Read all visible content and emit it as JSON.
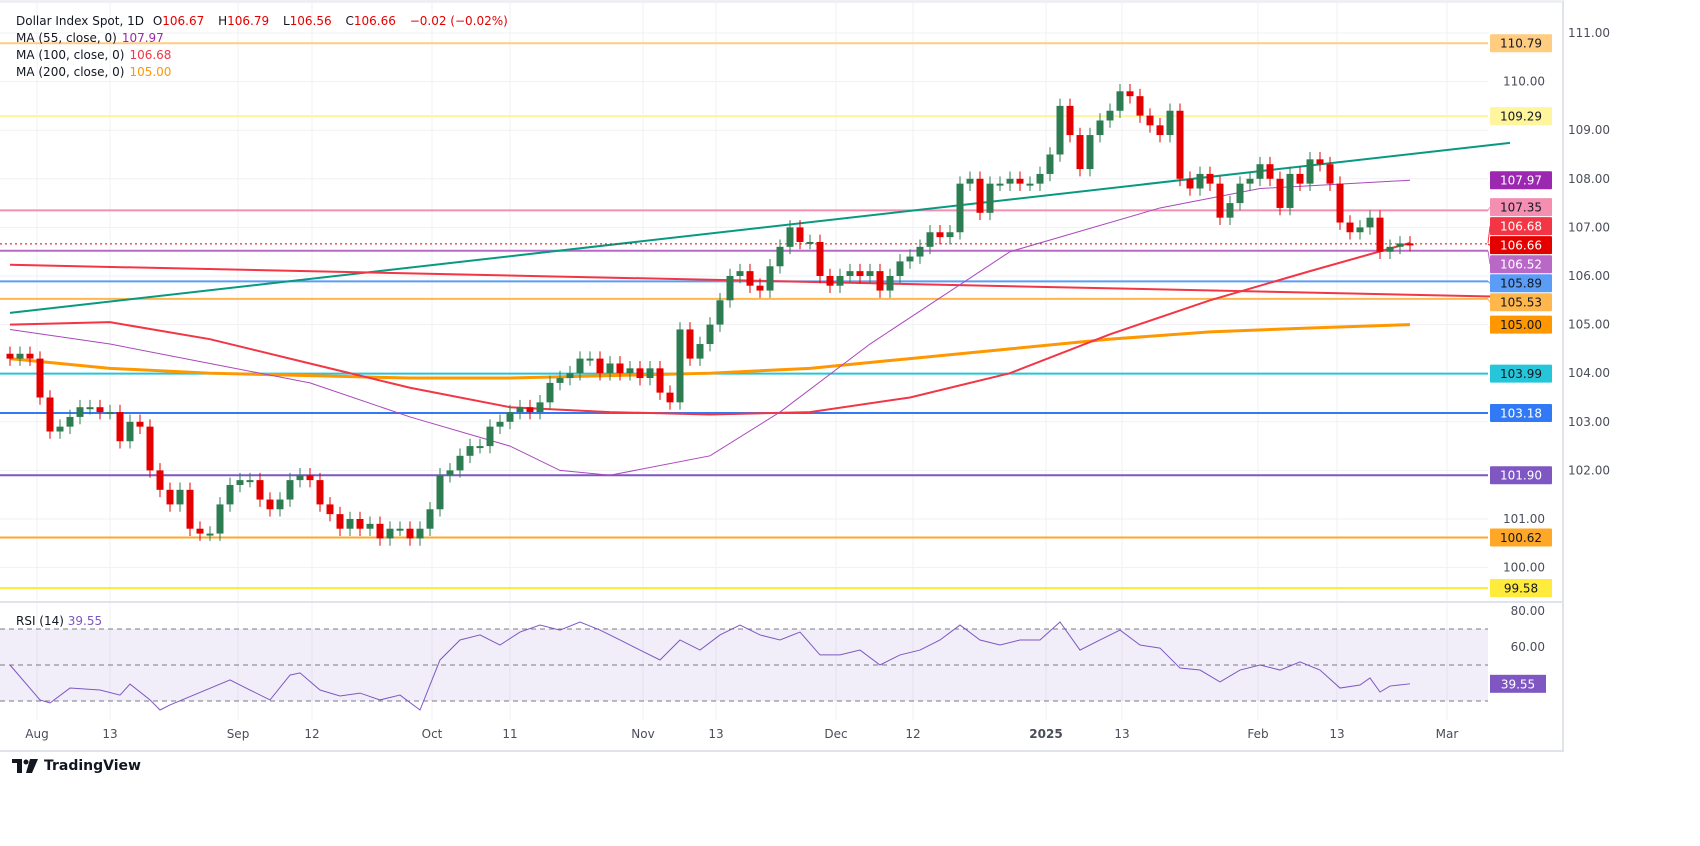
{
  "header": {
    "symbol": "Dollar Index Spot, 1D",
    "o_label": "O",
    "open": "106.67",
    "h_label": "H",
    "high": "106.79",
    "l_label": "L",
    "low": "106.56",
    "c_label": "C",
    "close": "106.66",
    "change": "−0.02 (−0.02%)"
  },
  "indicators": [
    {
      "label": "MA (55, close, 0)",
      "value": "107.97",
      "color": "#9c27b0"
    },
    {
      "label": "MA (100, close, 0)",
      "value": "106.68",
      "color": "#f23645"
    },
    {
      "label": "MA (200, close, 0)",
      "value": "105.00",
      "color": "#ff9800"
    }
  ],
  "rsi": {
    "label": "RSI (14)",
    "value": "39.55",
    "color": "#7e57c2"
  },
  "footer": {
    "brand": "TradingView"
  },
  "chart_data": {
    "type": "candlestick",
    "ylim": [
      99.3,
      111.2
    ],
    "price_ticks": [
      "100.00",
      "101.00",
      "102.00",
      "103.00",
      "104.00",
      "105.00",
      "106.00",
      "107.00",
      "108.00",
      "109.00",
      "110.00",
      "111.00"
    ],
    "x_ticks": [
      "Aug",
      "13",
      "Sep",
      "12",
      "Oct",
      "11",
      "Nov",
      "13",
      "Dec",
      "12",
      "2025",
      "13",
      "Feb",
      "13",
      "Mar"
    ],
    "up_color": "#2e7d52",
    "down_color": "#e50000",
    "closes": [
      104.3,
      104.4,
      104.3,
      103.5,
      102.8,
      102.9,
      103.1,
      103.3,
      103.3,
      103.2,
      103.2,
      102.6,
      103.0,
      102.9,
      102.0,
      101.6,
      101.3,
      101.6,
      100.8,
      100.7,
      100.7,
      101.3,
      101.7,
      101.8,
      101.8,
      101.4,
      101.2,
      101.4,
      101.8,
      101.9,
      101.8,
      101.3,
      101.1,
      100.8,
      101.0,
      100.8,
      100.9,
      100.6,
      100.8,
      100.8,
      100.6,
      100.8,
      101.2,
      101.9,
      102.0,
      102.3,
      102.5,
      102.5,
      102.9,
      103.0,
      103.2,
      103.3,
      103.2,
      103.4,
      103.8,
      103.9,
      104.0,
      104.3,
      104.3,
      104.0,
      104.2,
      104.0,
      104.1,
      103.9,
      104.1,
      103.6,
      103.4,
      104.9,
      104.3,
      104.6,
      105.0,
      105.5,
      106.0,
      106.1,
      105.8,
      105.7,
      106.2,
      106.6,
      107.0,
      106.7,
      106.7,
      106.0,
      105.8,
      106.0,
      106.1,
      106.0,
      106.1,
      105.7,
      106.0,
      106.3,
      106.4,
      106.6,
      106.9,
      106.8,
      106.9,
      107.9,
      108.0,
      107.3,
      107.9,
      107.9,
      108.0,
      107.9,
      107.9,
      108.1,
      108.5,
      109.5,
      108.9,
      108.2,
      108.9,
      109.2,
      109.4,
      109.8,
      109.7,
      109.3,
      109.1,
      108.9,
      109.4,
      108.0,
      107.8,
      108.1,
      107.9,
      107.2,
      107.5,
      107.9,
      108.0,
      108.3,
      108.0,
      107.4,
      108.1,
      107.9,
      108.4,
      108.3,
      107.9,
      107.1,
      106.9,
      107.0,
      107.2,
      106.5,
      106.6,
      106.67,
      106.66
    ],
    "ma55": [
      [
        0,
        104.9
      ],
      [
        10,
        104.6
      ],
      [
        20,
        104.2
      ],
      [
        30,
        103.8
      ],
      [
        40,
        103.1
      ],
      [
        50,
        102.5
      ],
      [
        55,
        102.0
      ],
      [
        60,
        101.9
      ],
      [
        70,
        102.3
      ],
      [
        77,
        103.2
      ],
      [
        86,
        104.6
      ],
      [
        100,
        106.5
      ],
      [
        115,
        107.4
      ],
      [
        125,
        107.8
      ],
      [
        140,
        107.97
      ]
    ],
    "ma100": [
      [
        0,
        105.0
      ],
      [
        10,
        105.05
      ],
      [
        20,
        104.7
      ],
      [
        30,
        104.2
      ],
      [
        40,
        103.7
      ],
      [
        50,
        103.3
      ],
      [
        60,
        103.2
      ],
      [
        70,
        103.15
      ],
      [
        80,
        103.2
      ],
      [
        90,
        103.5
      ],
      [
        100,
        104.0
      ],
      [
        110,
        104.8
      ],
      [
        120,
        105.5
      ],
      [
        130,
        106.1
      ],
      [
        140,
        106.68
      ]
    ],
    "ma200": [
      [
        0,
        104.3
      ],
      [
        10,
        104.1
      ],
      [
        20,
        104.0
      ],
      [
        30,
        103.95
      ],
      [
        40,
        103.9
      ],
      [
        50,
        103.9
      ],
      [
        60,
        103.95
      ],
      [
        70,
        104.0
      ],
      [
        80,
        104.1
      ],
      [
        90,
        104.3
      ],
      [
        100,
        104.5
      ],
      [
        110,
        104.7
      ],
      [
        120,
        104.85
      ],
      [
        130,
        104.93
      ],
      [
        140,
        105.0
      ]
    ],
    "trendlines": [
      {
        "color": "#089981",
        "from": [
          0,
          105.24
        ],
        "to": [
          150,
          108.74
        ]
      },
      {
        "color": "#f23645",
        "from": [
          0,
          106.23
        ],
        "to": [
          150,
          105.57
        ]
      }
    ],
    "levels": [
      {
        "value": "110.79",
        "color": "#ffcc80",
        "text": "#131722"
      },
      {
        "value": "109.29",
        "color": "#fff59d",
        "text": "#131722"
      },
      {
        "value": "107.35",
        "color": "#f48fb1",
        "text": "#131722"
      },
      {
        "value": "106.52",
        "color": "#ba68c8",
        "text": "#ffffff"
      },
      {
        "value": "105.89",
        "color": "#5b9cf6",
        "text": "#131722"
      },
      {
        "value": "105.53",
        "color": "#ffb74d",
        "text": "#131722"
      },
      {
        "value": "103.99",
        "color": "#26c6da",
        "text": "#131722"
      },
      {
        "value": "103.18",
        "color": "#3179f5",
        "text": "#ffffff"
      },
      {
        "value": "101.90",
        "color": "#7e57c2",
        "text": "#ffffff"
      },
      {
        "value": "100.62",
        "color": "#ffa726",
        "text": "#131722"
      },
      {
        "value": "99.58",
        "color": "#ffeb3b",
        "text": "#131722"
      }
    ],
    "badges": [
      {
        "value": "107.97",
        "color": "#9c27b0",
        "text": "#ffffff"
      },
      {
        "value": "106.68",
        "color": "#f23645",
        "text": "#ffffff"
      },
      {
        "value": "106.66",
        "color": "#e50000",
        "text": "#ffffff"
      },
      {
        "value": "105.00",
        "color": "#ff9800",
        "text": "#131722"
      }
    ],
    "rsi_ticks": [
      "60.00",
      "80.00"
    ],
    "rsi_bands": [
      70,
      50,
      30
    ],
    "rsi_points": [
      [
        0,
        50
      ],
      [
        3,
        30.6
      ],
      [
        4,
        28.9
      ],
      [
        6,
        37.2
      ],
      [
        9,
        36.1
      ],
      [
        11,
        33.3
      ],
      [
        12,
        39.4
      ],
      [
        14,
        30.6
      ],
      [
        15,
        25
      ],
      [
        16,
        27.8
      ],
      [
        22,
        41.7
      ],
      [
        24,
        36.1
      ],
      [
        26,
        30.6
      ],
      [
        28,
        44.4
      ],
      [
        29,
        45.6
      ],
      [
        31,
        36.1
      ],
      [
        33,
        32.8
      ],
      [
        35,
        34.4
      ],
      [
        37,
        30.6
      ],
      [
        39,
        33.3
      ],
      [
        41,
        25
      ],
      [
        43,
        52.8
      ],
      [
        45,
        63.9
      ],
      [
        47,
        66.7
      ],
      [
        49,
        61.1
      ],
      [
        51,
        68.3
      ],
      [
        53,
        72.2
      ],
      [
        55,
        69.4
      ],
      [
        57,
        73.9
      ],
      [
        59,
        69.4
      ],
      [
        61,
        63.9
      ],
      [
        63,
        58.3
      ],
      [
        65,
        52.8
      ],
      [
        67,
        63.9
      ],
      [
        69,
        58.3
      ],
      [
        71,
        66.7
      ],
      [
        73,
        72.2
      ],
      [
        75,
        66.7
      ],
      [
        77,
        63.9
      ],
      [
        79,
        68.3
      ],
      [
        81,
        55.6
      ],
      [
        83,
        55.6
      ],
      [
        85,
        58.3
      ],
      [
        87,
        50
      ],
      [
        89,
        55.6
      ],
      [
        91,
        58.3
      ],
      [
        93,
        63.9
      ],
      [
        95,
        72.2
      ],
      [
        97,
        63.9
      ],
      [
        99,
        61.1
      ],
      [
        101,
        63.9
      ],
      [
        103,
        63.9
      ],
      [
        105,
        73.9
      ],
      [
        107,
        58.3
      ],
      [
        109,
        63.9
      ],
      [
        111,
        69.4
      ],
      [
        113,
        61.1
      ],
      [
        115,
        59.4
      ],
      [
        117,
        48.3
      ],
      [
        119,
        47.2
      ],
      [
        121,
        40.6
      ],
      [
        123,
        47.2
      ],
      [
        125,
        50
      ],
      [
        127,
        47.2
      ],
      [
        129,
        51.7
      ],
      [
        131,
        47.2
      ],
      [
        133,
        37.2
      ],
      [
        135,
        38.9
      ],
      [
        136,
        42.8
      ],
      [
        137,
        35
      ],
      [
        138,
        38.3
      ],
      [
        140,
        39.55
      ]
    ]
  }
}
